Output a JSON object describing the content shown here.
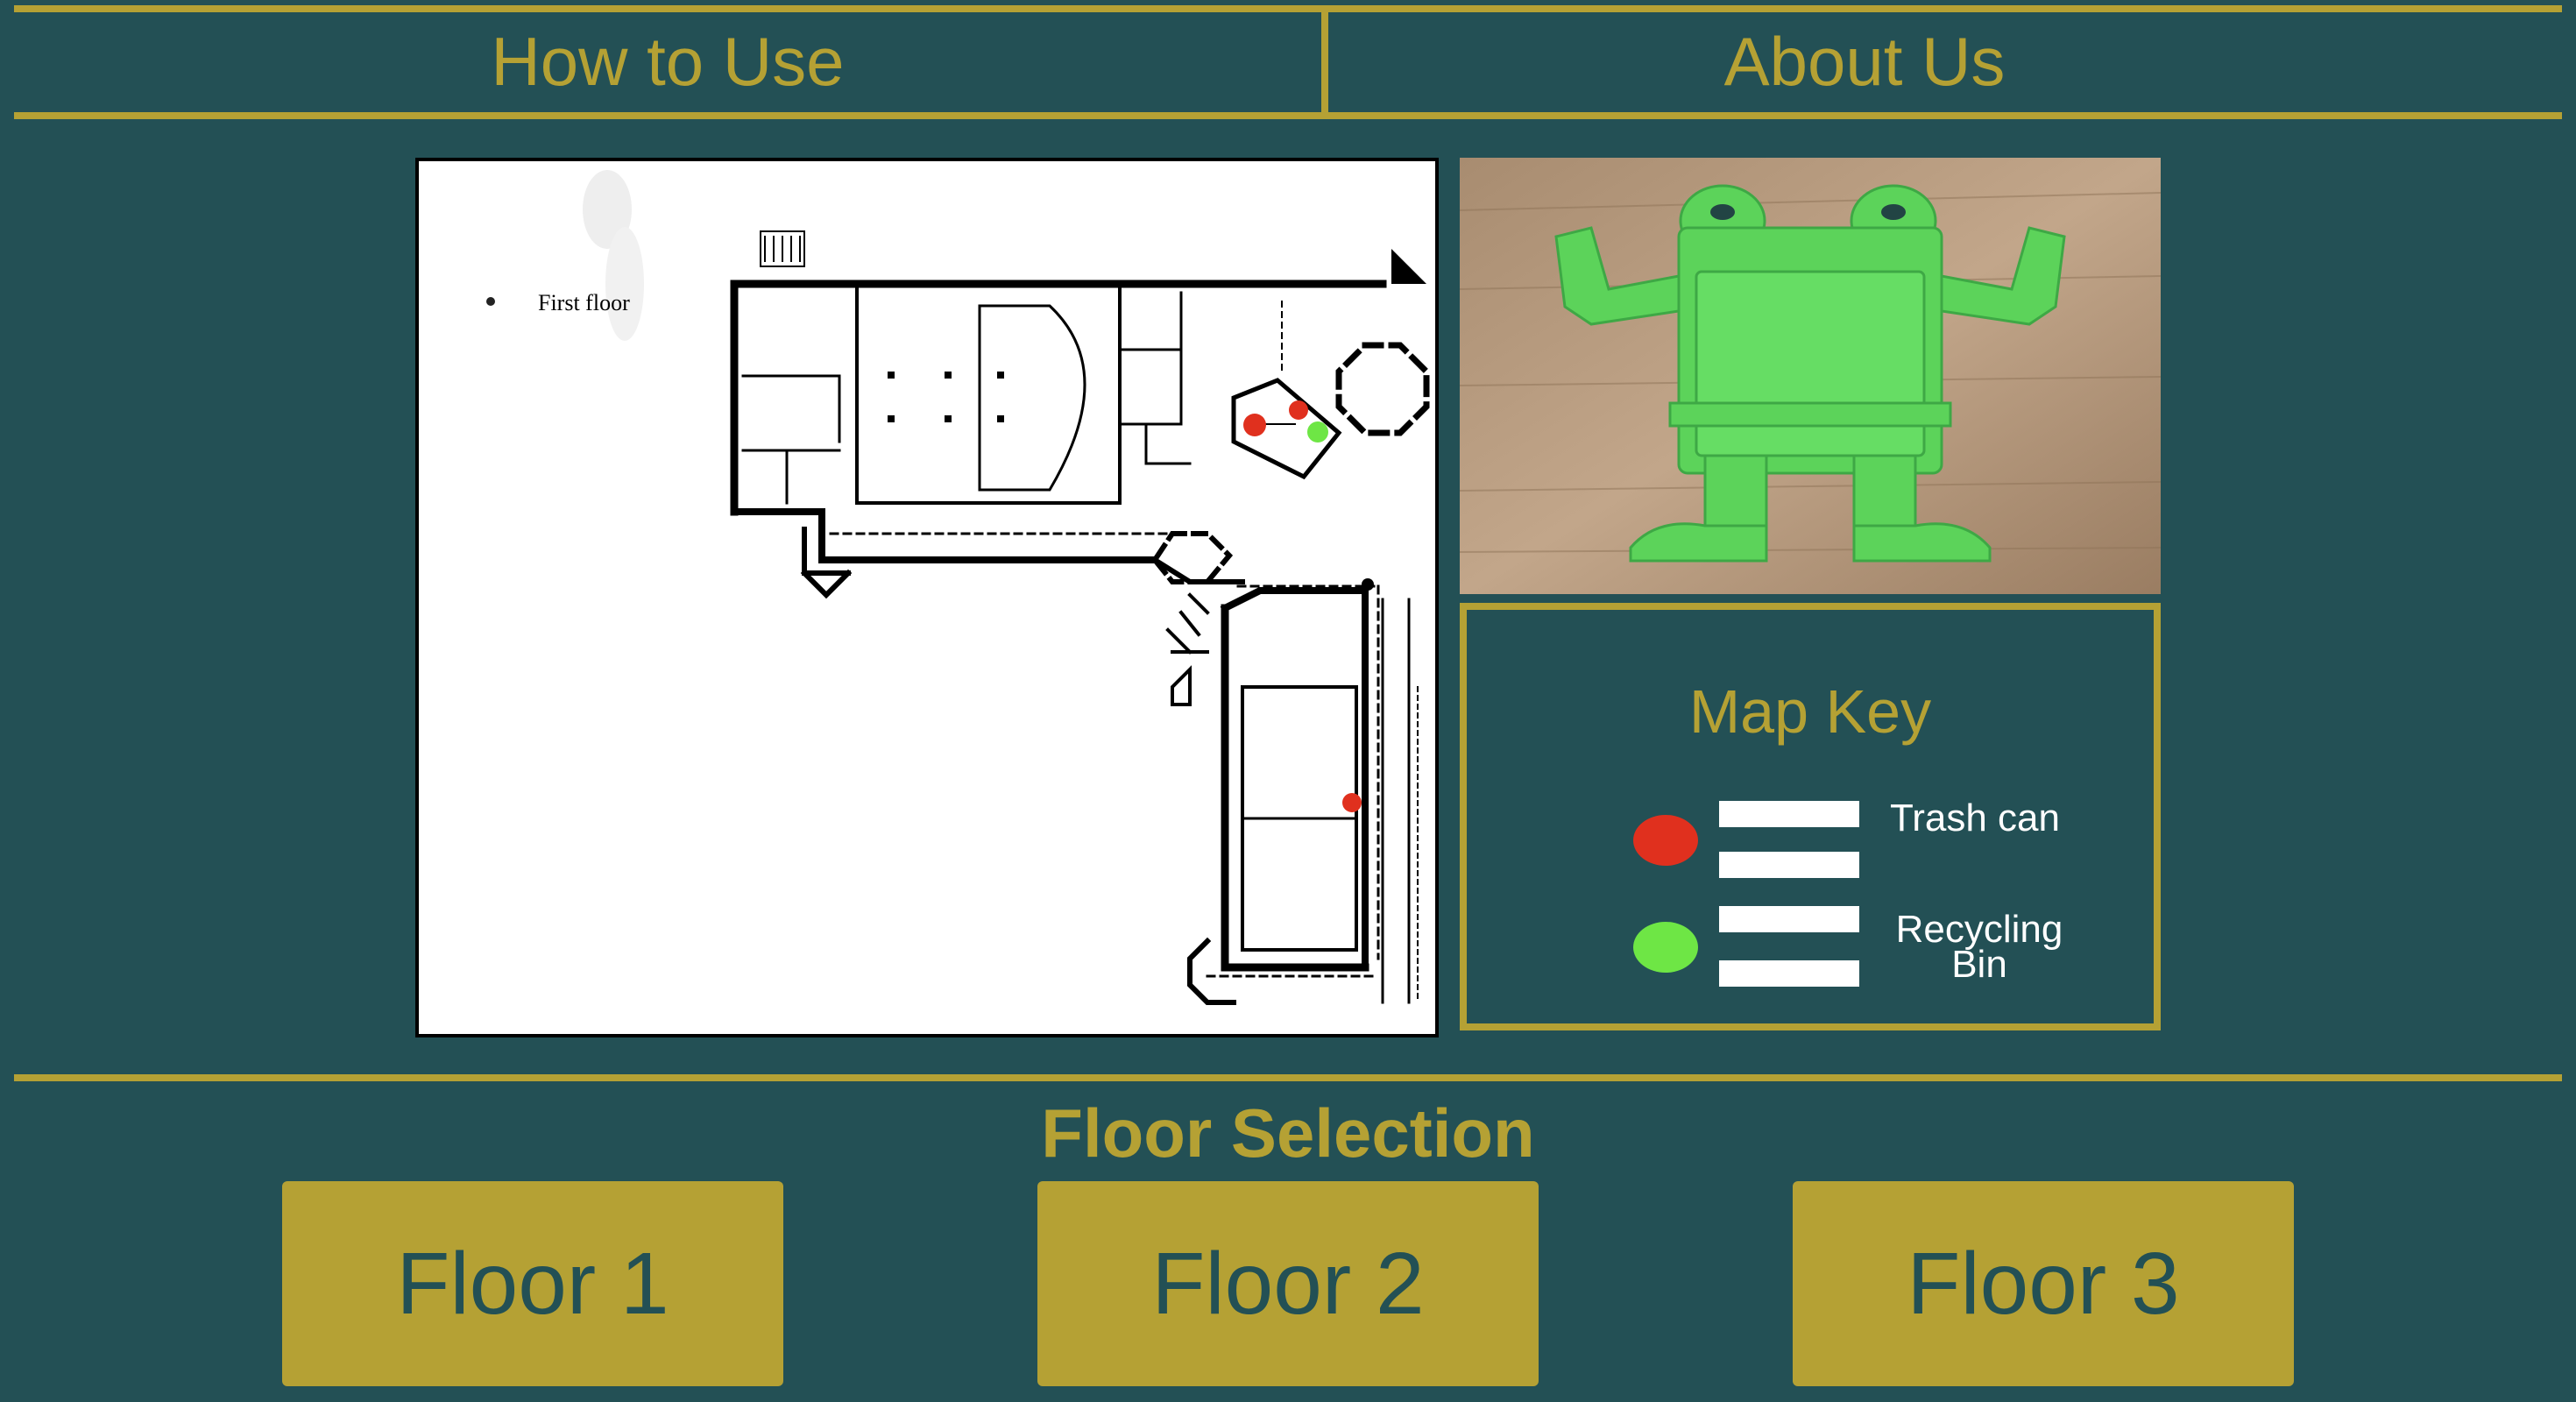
{
  "nav": {
    "how_to_use": "How to Use",
    "about_us": "About Us"
  },
  "map": {
    "floor_label": "First floor",
    "markers": [
      {
        "type": "trash"
      },
      {
        "type": "trash"
      },
      {
        "type": "recycling"
      },
      {
        "type": "trash"
      }
    ]
  },
  "map_key": {
    "title": "Map Key",
    "trash_label": "Trash can",
    "recycling_label_line1": "Recycling",
    "recycling_label_line2": "Bin"
  },
  "floor_selection": {
    "title": "Floor Selection",
    "buttons": [
      "Floor 1",
      "Floor 2",
      "Floor 3"
    ]
  },
  "colors": {
    "background": "#235055",
    "accent": "#B5A134",
    "trash": "#E0301E",
    "recycling": "#6EE645"
  }
}
